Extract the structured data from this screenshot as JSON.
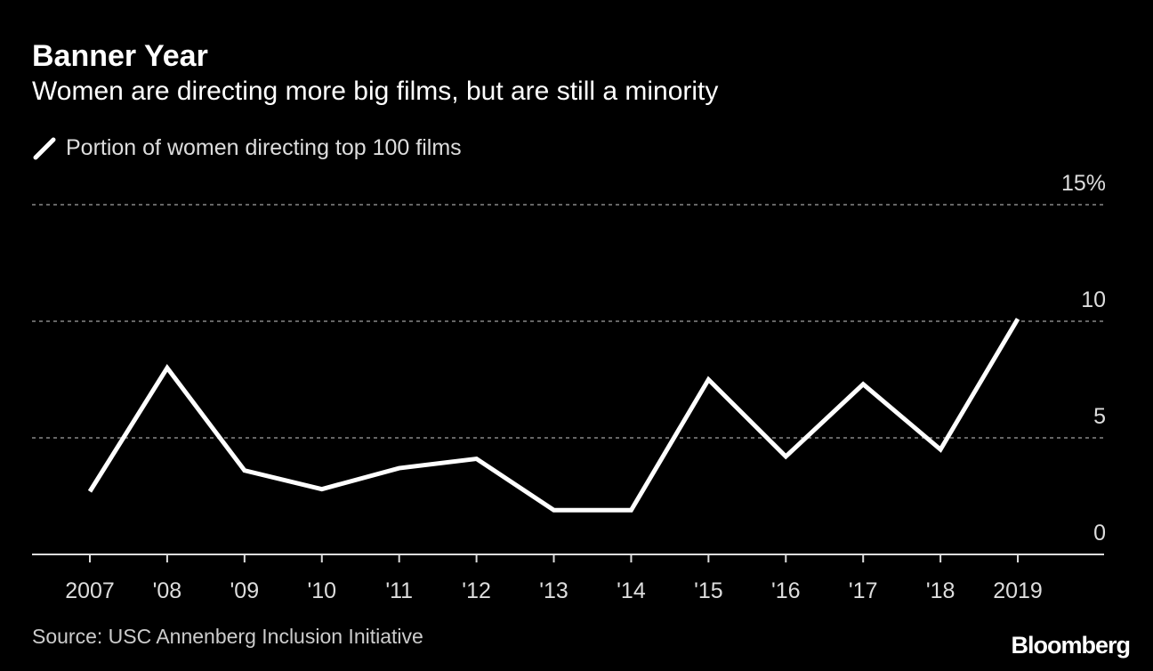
{
  "chart_data": {
    "type": "line",
    "title": "Banner Year",
    "subtitle": "Women are directing more big films, but are still a minority",
    "categories": [
      "2007",
      "'08",
      "'09",
      "'10",
      "'11",
      "'12",
      "'13",
      "'14",
      "'15",
      "'16",
      "'17",
      "'18",
      "2019"
    ],
    "series": [
      {
        "name": "Portion of women directing top 100 films",
        "values": [
          2.7,
          8.0,
          3.6,
          2.8,
          3.7,
          4.1,
          1.9,
          1.9,
          7.5,
          4.2,
          7.3,
          4.5,
          10.1
        ],
        "color": "#ffffff"
      }
    ],
    "ylim": [
      0,
      15
    ],
    "yticks": [
      "0",
      "5",
      "10",
      "15%"
    ],
    "ytick_values": [
      0,
      5,
      10,
      15
    ],
    "grid": true,
    "legend": "top-left",
    "source": "Source: USC Annenberg Inclusion Initiative",
    "logo": "Bloomberg"
  }
}
